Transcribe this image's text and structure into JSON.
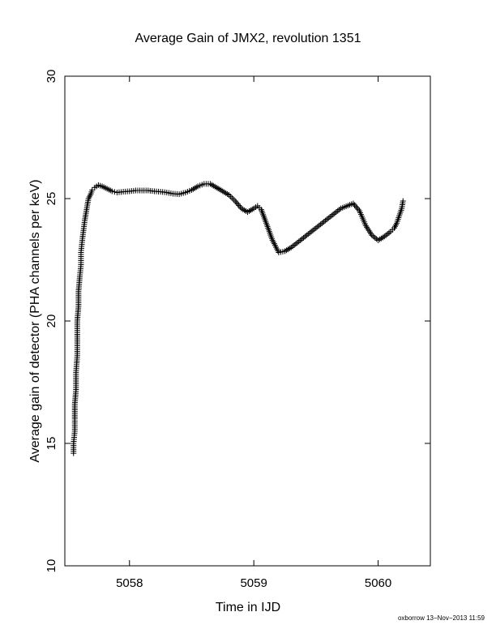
{
  "chart_data": {
    "type": "scatter",
    "title": "Average Gain of JMX2, revolution 1351",
    "xlabel": "Time in IJD",
    "ylabel": "Average gain of detector (PHA channels per keV)",
    "xlim": [
      5057.48,
      5060.42
    ],
    "ylim": [
      10,
      30
    ],
    "xticks": [
      5058,
      5059,
      5060
    ],
    "xtick_labels": [
      "5058",
      "5059",
      "5060"
    ],
    "yticks": [
      10,
      15,
      20,
      25,
      30
    ],
    "ytick_labels": [
      "10",
      "15",
      "20",
      "25",
      "30"
    ],
    "marker": "plus",
    "grid": false,
    "legend": "none",
    "x": [
      5057.55,
      5057.55,
      5057.56,
      5057.56,
      5057.56,
      5057.57,
      5057.57,
      5057.58,
      5057.58,
      5057.58,
      5057.59,
      5057.59,
      5057.6,
      5057.61,
      5057.61,
      5057.62,
      5057.63,
      5057.64,
      5057.65,
      5057.66,
      5057.67,
      5057.69,
      5057.7,
      5057.72,
      5057.75,
      5057.78,
      5057.82,
      5057.86,
      5057.9,
      5057.95,
      5058.0,
      5058.05,
      5058.1,
      5058.15,
      5058.2,
      5058.25,
      5058.3,
      5058.35,
      5058.4,
      5058.45,
      5058.5,
      5058.55,
      5058.6,
      5058.65,
      5058.7,
      5058.75,
      5058.8,
      5058.85,
      5058.9,
      5058.95,
      5059.0,
      5059.03,
      5059.06,
      5059.1,
      5059.15,
      5059.2,
      5059.25,
      5059.3,
      5059.4,
      5059.5,
      5059.6,
      5059.7,
      5059.8,
      5059.85,
      5059.9,
      5059.95,
      5060.0,
      5060.05,
      5060.1,
      5060.13,
      5060.15,
      5060.17,
      5060.19,
      5060.2
    ],
    "y": [
      14.6,
      15.0,
      15.5,
      16.0,
      16.6,
      17.2,
      17.9,
      18.6,
      19.3,
      20.0,
      20.6,
      21.2,
      21.8,
      22.3,
      22.8,
      23.3,
      23.7,
      24.1,
      24.4,
      24.7,
      25.0,
      25.2,
      25.35,
      25.45,
      25.55,
      25.5,
      25.4,
      25.3,
      25.25,
      25.28,
      25.3,
      25.33,
      25.33,
      25.33,
      25.3,
      25.28,
      25.25,
      25.2,
      25.18,
      25.25,
      25.35,
      25.5,
      25.6,
      25.6,
      25.45,
      25.3,
      25.15,
      24.9,
      24.6,
      24.45,
      24.6,
      24.7,
      24.55,
      24.0,
      23.3,
      22.8,
      22.85,
      23.0,
      23.4,
      23.8,
      24.2,
      24.6,
      24.8,
      24.5,
      23.9,
      23.5,
      23.3,
      23.45,
      23.65,
      23.8,
      24.0,
      24.3,
      24.6,
      24.9
    ]
  },
  "footer": {
    "credit": "oxborrow 13−Nov−2013 11:59"
  }
}
